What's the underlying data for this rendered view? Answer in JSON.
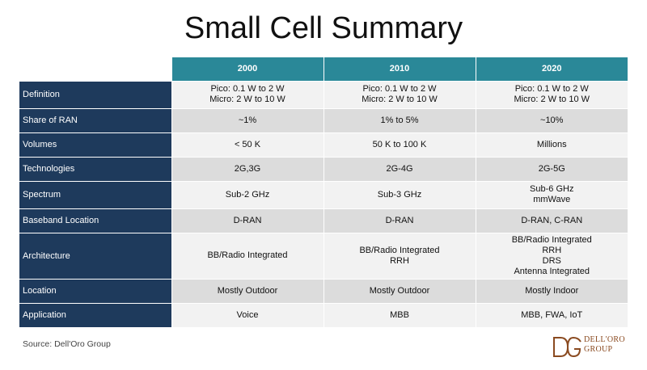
{
  "title": "Small Cell Summary",
  "columns": [
    "2000",
    "2010",
    "2020"
  ],
  "rows": [
    {
      "label": "Definition",
      "cells": [
        [
          "Pico: 0.1 W to 2 W",
          "Micro: 2 W to 10 W"
        ],
        [
          "Pico: 0.1 W to 2 W",
          "Micro: 2 W to 10 W"
        ],
        [
          "Pico: 0.1 W to 2 W",
          "Micro: 2 W to 10 W"
        ]
      ]
    },
    {
      "label": "Share of RAN",
      "cells": [
        [
          "~1%"
        ],
        [
          "1% to 5%"
        ],
        [
          "~10%"
        ]
      ]
    },
    {
      "label": "Volumes",
      "cells": [
        [
          "< 50 K"
        ],
        [
          "50 K to 100 K"
        ],
        [
          "Millions"
        ]
      ]
    },
    {
      "label": "Technologies",
      "cells": [
        [
          "2G,3G"
        ],
        [
          "2G-4G"
        ],
        [
          "2G-5G"
        ]
      ]
    },
    {
      "label": "Spectrum",
      "cells": [
        [
          "Sub-2 GHz"
        ],
        [
          "Sub-3 GHz"
        ],
        [
          "Sub-6 GHz",
          "mmWave"
        ]
      ]
    },
    {
      "label": "Baseband Location",
      "cells": [
        [
          "D-RAN"
        ],
        [
          "D-RAN"
        ],
        [
          "D-RAN, C-RAN"
        ]
      ]
    },
    {
      "label": "Architecture",
      "cells": [
        [
          "BB/Radio Integrated"
        ],
        [
          "BB/Radio Integrated",
          "RRH"
        ],
        [
          "BB/Radio Integrated",
          "RRH",
          "DRS",
          "Antenna Integrated"
        ]
      ]
    },
    {
      "label": "Location",
      "cells": [
        [
          "Mostly Outdoor"
        ],
        [
          "Mostly Outdoor"
        ],
        [
          "Mostly Indoor"
        ]
      ]
    },
    {
      "label": "Application",
      "cells": [
        [
          "Voice"
        ],
        [
          "MBB"
        ],
        [
          "MBB, FWA, IoT"
        ]
      ]
    }
  ],
  "source": "Source: Dell'Oro Group",
  "logo": {
    "line1": "DELL'ORO",
    "line2": "GROUP",
    "color": "#8a4a20"
  },
  "colors": {
    "header": "#2a8898",
    "label": "#1e3a5c",
    "row_light": "#f2f2f2",
    "row_dark": "#dcdcdc"
  }
}
